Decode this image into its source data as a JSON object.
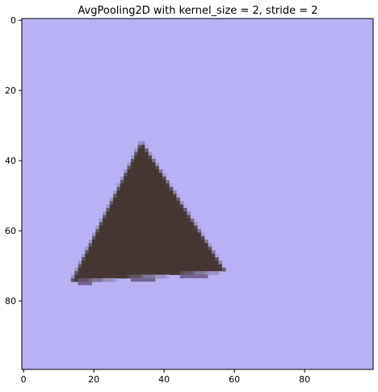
{
  "chart_data": {
    "type": "heatmap",
    "title": "AvgPooling2D with kernel_size = 2, stride = 2",
    "xlabel": "",
    "ylabel": "",
    "image_size": [
      100,
      100
    ],
    "xlim": [
      -0.5,
      99.5
    ],
    "ylim": [
      99.5,
      -0.5
    ],
    "x_ticks": [
      0,
      20,
      40,
      60,
      80
    ],
    "y_ticks": [
      0,
      20,
      40,
      60,
      80
    ],
    "x_tick_labels": [
      "0",
      "20",
      "40",
      "60",
      "80"
    ],
    "y_tick_labels": [
      "0",
      "20",
      "40",
      "60",
      "80"
    ],
    "grid": false,
    "background_color": "#b8b2f4",
    "shape_color": "#463634",
    "edge_color": "#766594",
    "triangle_vertices": {
      "apex": [
        34,
        35
      ],
      "bottom_left": [
        14,
        75
      ],
      "bottom_right": [
        58,
        72
      ]
    }
  }
}
